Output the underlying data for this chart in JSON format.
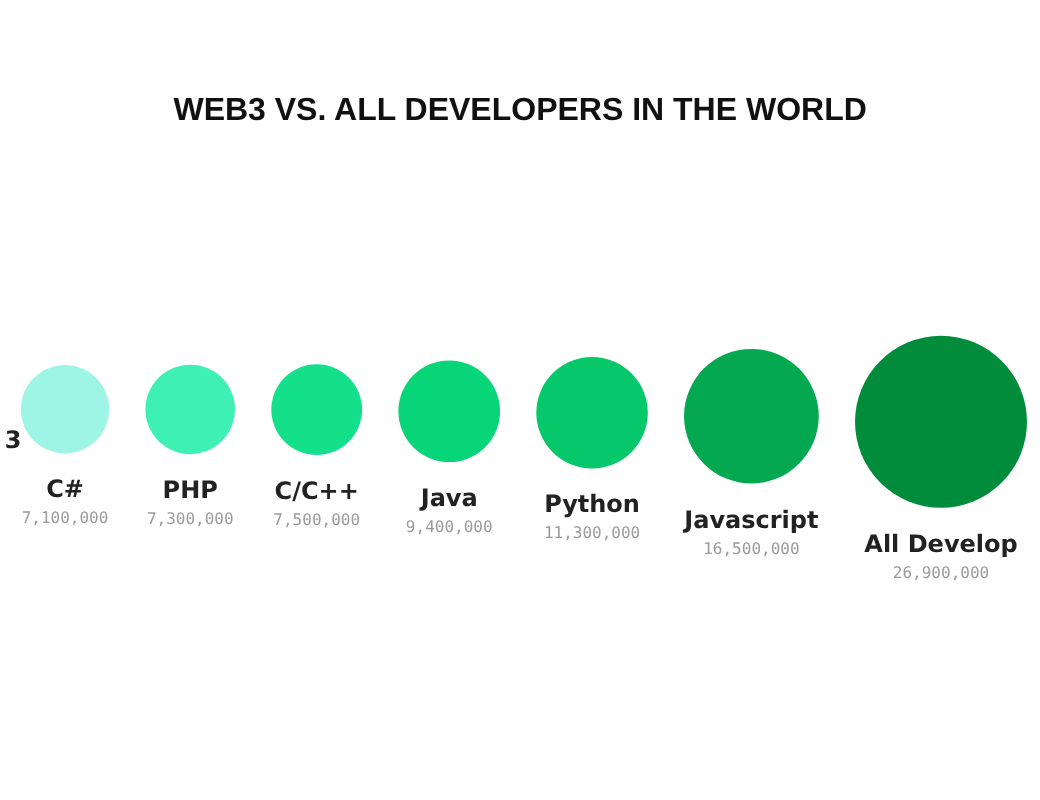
{
  "chart_data": {
    "type": "other",
    "title": "WEB3 VS. ALL DEVELOPERS IN THE WORLD",
    "categories": [
      "3",
      "C#",
      "PHP",
      "C/C++",
      "Java",
      "Python",
      "Javascript",
      "All Develop"
    ],
    "values": [
      null,
      7100000,
      7300000,
      7500000,
      9400000,
      11300000,
      16500000,
      26900000
    ],
    "value_labels": [
      null,
      "7,100,000",
      "7,300,000",
      "7,500,000",
      "9,400,000",
      "11,300,000",
      "16,500,000",
      "26,900,000"
    ],
    "colors": [
      null,
      "#9ef5e6",
      "#3ff0b4",
      "#14e08c",
      "#08d478",
      "#06c86a",
      "#04a850",
      "#018c3c"
    ]
  }
}
